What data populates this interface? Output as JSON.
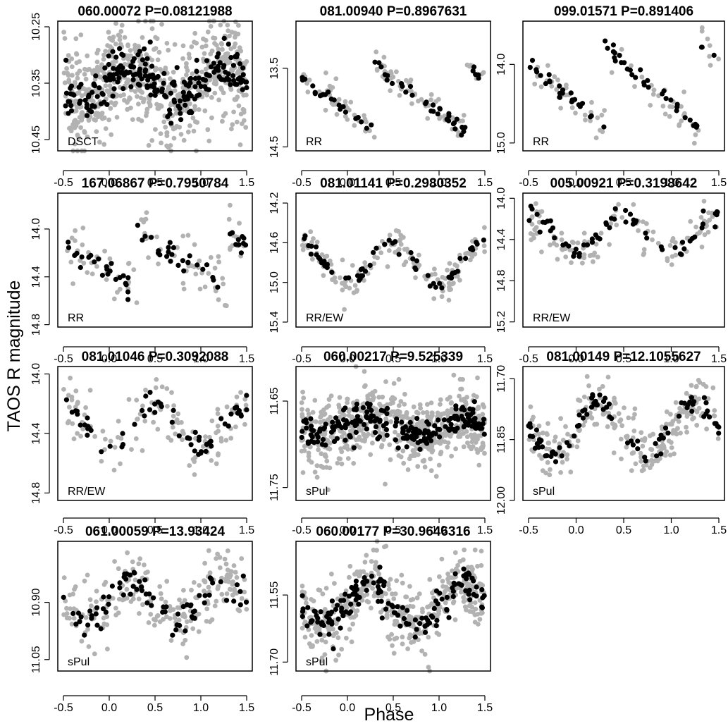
{
  "figure": {
    "ylabel": "TAOS R magnitude",
    "xlabel": "Phase",
    "colors": {
      "raw": "#b2b2b2",
      "binned": "#000000",
      "frame": "#000000"
    }
  },
  "chart_data": [
    {
      "type": "scatter",
      "title": "060.00072 P=0.08121988",
      "class": "DSCT",
      "mean": 10.35,
      "amp": 0.03,
      "scatter": 0.035,
      "shape": "sine",
      "npts": 650,
      "xlim": [
        -0.5,
        1.5
      ],
      "xticks": [
        -0.5,
        0.0,
        0.5,
        1.0,
        1.5
      ],
      "xtick_labels": [
        "-0.5",
        "0.0",
        "0.5",
        "1.0",
        "1.5"
      ],
      "ylim": [
        10.47,
        10.24
      ],
      "yticks": [
        10.25,
        10.35,
        10.45
      ],
      "ytick_labels": [
        "10.25",
        "10.35",
        "10.45"
      ]
    },
    {
      "type": "scatter",
      "title": "081.00940 P=0.8967631",
      "class": "RR",
      "mean": 13.85,
      "amp": 0.45,
      "scatter": 0.07,
      "shape": "rr",
      "npts": 110,
      "xlim": [
        -0.5,
        1.5
      ],
      "xticks": [
        -0.5,
        0.0,
        0.5,
        1.0,
        1.5
      ],
      "xtick_labels": [
        "-0.5",
        "0.0",
        "0.5",
        "1.0",
        "1.5"
      ],
      "ylim": [
        14.55,
        12.9
      ],
      "yticks": [
        13.5,
        14.5
      ],
      "ytick_labels": [
        "13.5",
        "14.5"
      ]
    },
    {
      "type": "scatter",
      "title": "099.01571 P=0.891406",
      "class": "RR",
      "mean": 14.25,
      "amp": 0.55,
      "scatter": 0.08,
      "shape": "rr",
      "npts": 70,
      "xlim": [
        -0.5,
        1.5
      ],
      "xticks": [
        -0.5,
        0.0,
        0.5,
        1.0,
        1.5
      ],
      "xtick_labels": [
        "-0.5",
        "0.0",
        "0.5",
        "1.0",
        "1.5"
      ],
      "ylim": [
        15.1,
        13.45
      ],
      "yticks": [
        14.0,
        15.0
      ],
      "ytick_labels": [
        "14.0",
        "15.0"
      ]
    },
    {
      "type": "scatter",
      "title": "167.06867 P=0.7950784",
      "class": "RR",
      "mean": 14.25,
      "amp": 0.25,
      "scatter": 0.09,
      "shape": "rr",
      "npts": 90,
      "xlim": [
        -0.5,
        1.5
      ],
      "xticks": [
        -0.5,
        0.0,
        0.5,
        1.0,
        1.5
      ],
      "xtick_labels": [
        "-0.5",
        "0.0",
        "0.5",
        "1.0",
        "1.5"
      ],
      "ylim": [
        14.82,
        13.7
      ],
      "yticks": [
        14.0,
        14.4,
        14.8
      ],
      "ytick_labels": [
        "14.0",
        "14.4",
        "14.8"
      ]
    },
    {
      "type": "scatter",
      "title": "081.01141 P=0.2980352",
      "class": "RR/EW",
      "mean": 14.8,
      "amp": 0.2,
      "scatter": 0.06,
      "shape": "ew",
      "npts": 150,
      "xlim": [
        -0.5,
        1.5
      ],
      "xticks": [
        -0.5,
        0.0,
        0.5,
        1.0,
        1.5
      ],
      "xtick_labels": [
        "-0.5",
        "0.0",
        "0.5",
        "1.0",
        "1.5"
      ],
      "ylim": [
        15.45,
        14.1
      ],
      "yticks": [
        14.2,
        14.6,
        15.0,
        15.4
      ],
      "ytick_labels": [
        "14.2",
        "14.6",
        "15.0",
        "15.4"
      ]
    },
    {
      "type": "scatter",
      "title": "005.00921 P=0.3198642",
      "class": "RR/EW",
      "mean": 14.35,
      "amp": 0.18,
      "scatter": 0.08,
      "shape": "ew",
      "npts": 110,
      "xlim": [
        -0.5,
        1.5
      ],
      "xticks": [
        -0.5,
        0.0,
        0.5,
        1.0,
        1.5
      ],
      "xtick_labels": [
        "-0.5",
        "0.0",
        "0.5",
        "1.0",
        "1.5"
      ],
      "ylim": [
        15.25,
        13.95
      ],
      "yticks": [
        14.0,
        14.4,
        14.8,
        15.2
      ],
      "ytick_labels": [
        "14.0",
        "14.4",
        "14.8",
        "15.2"
      ]
    },
    {
      "type": "scatter",
      "title": "081.01046 P=0.3092088",
      "class": "RR/EW",
      "mean": 14.35,
      "amp": 0.14,
      "scatter": 0.07,
      "shape": "ew",
      "npts": 120,
      "xlim": [
        -0.5,
        1.5
      ],
      "xticks": [
        -0.5,
        0.0,
        0.5,
        1.0,
        1.5
      ],
      "xtick_labels": [
        "-0.5",
        "0.0",
        "0.5",
        "1.0",
        "1.5"
      ],
      "ylim": [
        14.85,
        13.95
      ],
      "yticks": [
        14.0,
        14.4,
        14.8
      ],
      "ytick_labels": [
        "14.0",
        "14.4",
        "14.8"
      ]
    },
    {
      "type": "scatter",
      "title": "060.00217 P=9.525339",
      "class": "sPul",
      "mean": 11.68,
      "amp": 0.01,
      "scatter": 0.015,
      "shape": "sine",
      "npts": 600,
      "xlim": [
        -0.5,
        1.5
      ],
      "xticks": [
        -0.5,
        0.0,
        0.5,
        1.0,
        1.5
      ],
      "xtick_labels": [
        "-0.5",
        "0.0",
        "0.5",
        "1.0",
        "1.5"
      ],
      "ylim": [
        11.765,
        11.61
      ],
      "yticks": [
        11.65,
        11.75
      ],
      "ytick_labels": [
        "11.65",
        "11.75"
      ]
    },
    {
      "type": "scatter",
      "title": "081.00149 P=12.1055627",
      "class": "sPul",
      "mean": 11.82,
      "amp": 0.06,
      "scatter": 0.025,
      "shape": "sine",
      "npts": 250,
      "xlim": [
        -0.5,
        1.5
      ],
      "xticks": [
        -0.5,
        0.0,
        0.5,
        1.0,
        1.5
      ],
      "xtick_labels": [
        "-0.5",
        "0.0",
        "0.5",
        "1.0",
        "1.5"
      ],
      "ylim": [
        12.0,
        11.67
      ],
      "yticks": [
        11.7,
        11.85,
        12.0
      ],
      "ytick_labels": [
        "11.70",
        "11.85",
        "12.00"
      ]
    },
    {
      "type": "scatter",
      "title": "061.00059 P=13.93424",
      "class": "sPul",
      "mean": 10.9,
      "amp": 0.05,
      "scatter": 0.035,
      "shape": "sine",
      "npts": 220,
      "xlim": [
        -0.5,
        1.5
      ],
      "xticks": [
        -0.5,
        0.0,
        0.5,
        1.0,
        1.5
      ],
      "xtick_labels": [
        "-0.5",
        "0.0",
        "0.5",
        "1.0",
        "1.5"
      ],
      "ylim": [
        11.08,
        10.74
      ],
      "yticks": [
        10.9,
        11.05
      ],
      "ytick_labels": [
        "10.90",
        "11.05"
      ]
    },
    {
      "type": "scatter",
      "title": "060.00177 P=30.9646316",
      "class": "sPul",
      "mean": 11.57,
      "amp": 0.045,
      "scatter": 0.03,
      "shape": "sine",
      "npts": 420,
      "xlim": [
        -0.5,
        1.5
      ],
      "xticks": [
        -0.5,
        0.0,
        0.5,
        1.0,
        1.5
      ],
      "xtick_labels": [
        "-0.5",
        "0.0",
        "0.5",
        "1.0",
        "1.5"
      ],
      "ylim": [
        11.72,
        11.43
      ],
      "yticks": [
        11.55,
        11.7
      ],
      "ytick_labels": [
        "11.55",
        "11.70"
      ]
    }
  ]
}
